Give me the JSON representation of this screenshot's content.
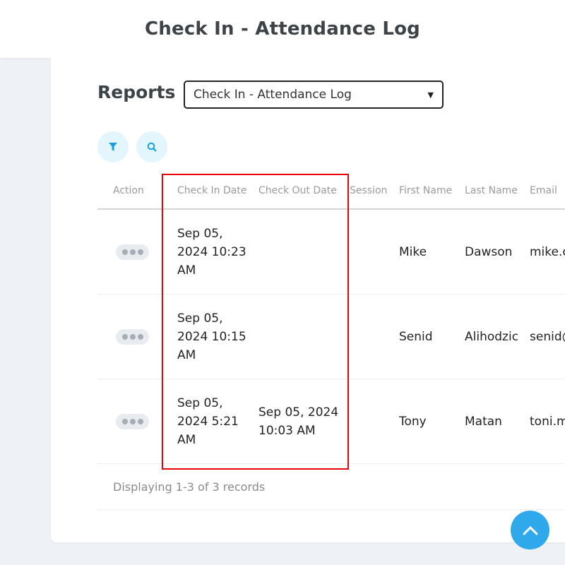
{
  "header": {
    "title": "Check In - Attendance Log"
  },
  "reports": {
    "label": "Reports",
    "selected": "Check In - Attendance Log"
  },
  "toolbar": {
    "filter_icon": "filter-icon",
    "search_icon": "search-icon"
  },
  "table": {
    "columns": [
      "Action",
      "Check In Date",
      "Check Out Date",
      "Session",
      "First Name",
      "Last Name",
      "Email"
    ],
    "rows": [
      {
        "check_in_l1": "Sep 05,",
        "check_in_l2": "2024 10:23",
        "check_in_l3": "AM",
        "check_out_l1": "",
        "check_out_l2": "",
        "session": "",
        "first": "Mike",
        "last": "Dawson",
        "email": "mike.c"
      },
      {
        "check_in_l1": "Sep 05,",
        "check_in_l2": "2024 10:15",
        "check_in_l3": "AM",
        "check_out_l1": "",
        "check_out_l2": "",
        "session": "",
        "first": "Senid",
        "last": "Alihodzic",
        "email": "senid@"
      },
      {
        "check_in_l1": "Sep 05,",
        "check_in_l2": "2024 5:21",
        "check_in_l3": "AM",
        "check_out_l1": "Sep 05, 2024",
        "check_out_l2": "10:03 AM",
        "session": "",
        "first": "Tony",
        "last": "Matan",
        "email": "toni.m"
      }
    ]
  },
  "footer": {
    "text": "Displaying 1-3 of 3 records"
  },
  "colors": {
    "accent": "#2fa9ec",
    "highlight": "#e8000b"
  }
}
